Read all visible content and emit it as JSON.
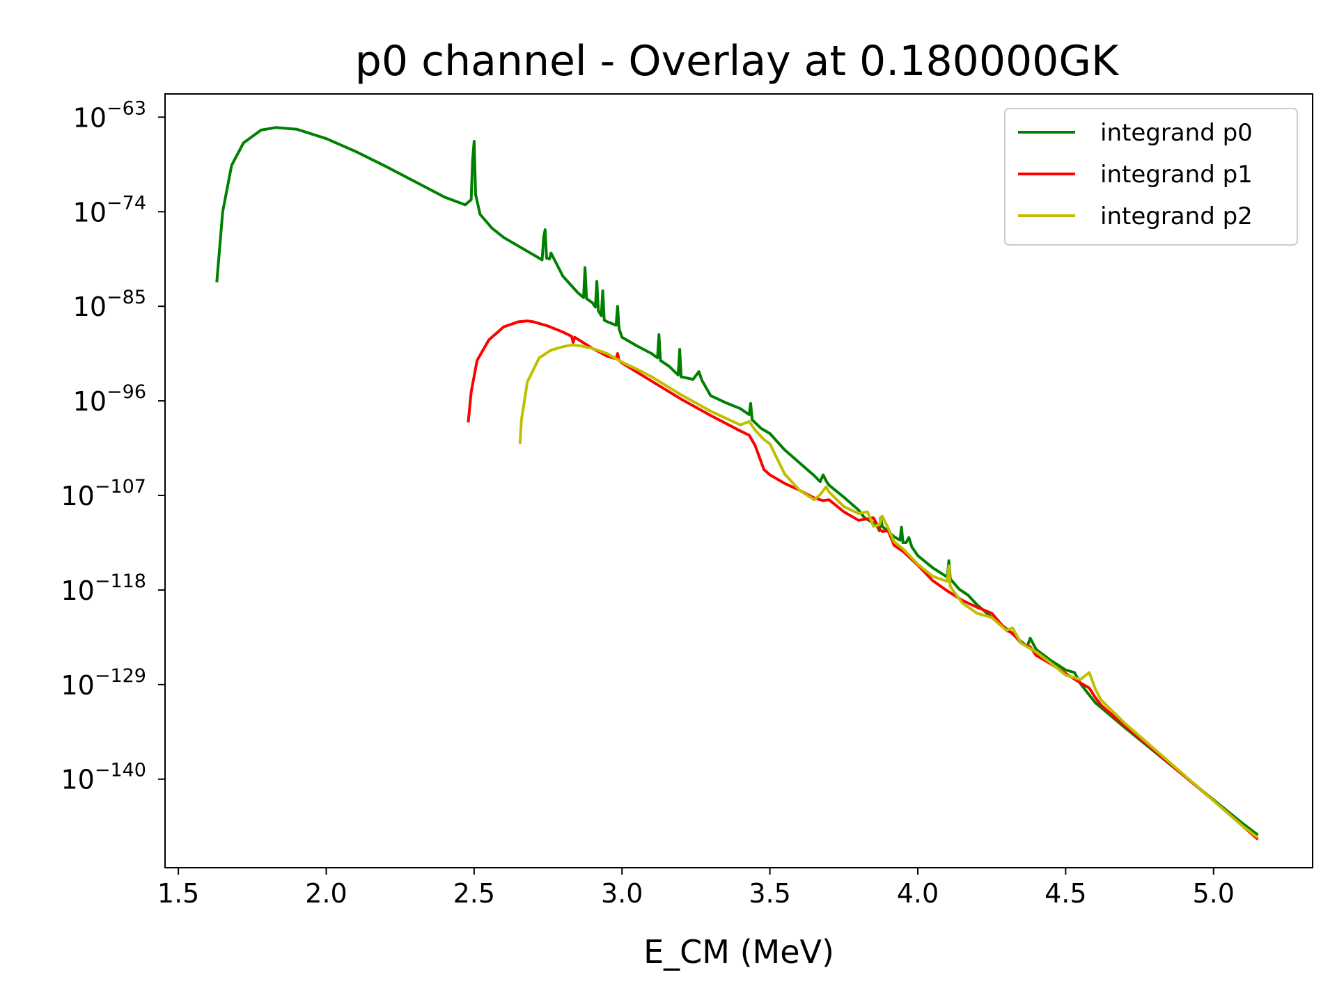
{
  "chart_data": {
    "type": "line",
    "title": "p0 channel - Overlay at 0.180000GK",
    "xlabel": "E_CM (MeV)",
    "ylabel": "",
    "yscale": "log",
    "xlim": [
      1.455,
      5.335
    ],
    "ylim_log10": [
      -150.3,
      -60.3
    ],
    "xticks": [
      1.5,
      2.0,
      2.5,
      3.0,
      3.5,
      4.0,
      4.5,
      5.0
    ],
    "xtick_labels": [
      "1.5",
      "2.0",
      "2.5",
      "3.0",
      "3.5",
      "4.0",
      "4.5",
      "5.0"
    ],
    "ytick_exponents": [
      -63,
      -74,
      -85,
      -96,
      -107,
      -118,
      -129,
      -140
    ],
    "ytick_base": "10",
    "ytick_labels": [
      "−63",
      "−74",
      "−85",
      "−96",
      "−107",
      "−118",
      "−129",
      "−140"
    ],
    "grid": false,
    "legend_position": "top-right",
    "series": [
      {
        "name": "integrand p0",
        "color": "#008000",
        "x": [
          1.63,
          1.65,
          1.68,
          1.72,
          1.78,
          1.83,
          1.9,
          2.0,
          2.1,
          2.2,
          2.3,
          2.4,
          2.47,
          2.49,
          2.495,
          2.5,
          2.505,
          2.52,
          2.56,
          2.6,
          2.65,
          2.7,
          2.73,
          2.735,
          2.74,
          2.745,
          2.755,
          2.76,
          2.8,
          2.85,
          2.87,
          2.875,
          2.88,
          2.9,
          2.91,
          2.915,
          2.92,
          2.93,
          2.935,
          2.94,
          2.95,
          2.98,
          2.985,
          2.99,
          3.0,
          3.05,
          3.1,
          3.12,
          3.125,
          3.13,
          3.16,
          3.19,
          3.195,
          3.2,
          3.24,
          3.26,
          3.27,
          3.3,
          3.35,
          3.4,
          3.43,
          3.435,
          3.44,
          3.47,
          3.5,
          3.55,
          3.6,
          3.65,
          3.67,
          3.68,
          3.69,
          3.7,
          3.75,
          3.8,
          3.82,
          3.84,
          3.86,
          3.87,
          3.875,
          3.88,
          3.9,
          3.92,
          3.94,
          3.945,
          3.95,
          3.96,
          3.97,
          3.98,
          4.0,
          4.05,
          4.1,
          4.105,
          4.11,
          4.14,
          4.17,
          4.2,
          4.25,
          4.3,
          4.35,
          4.37,
          4.38,
          4.4,
          4.45,
          4.5,
          4.53,
          4.55,
          4.6,
          4.7,
          4.8,
          4.9,
          5.0,
          5.1,
          5.15
        ],
        "log10y": [
          -82.2,
          -74.0,
          -68.6,
          -66.0,
          -64.5,
          -64.2,
          -64.4,
          -65.5,
          -67.0,
          -68.7,
          -70.5,
          -72.3,
          -73.2,
          -72.6,
          -68.0,
          -65.8,
          -72.0,
          -74.3,
          -75.9,
          -77.0,
          -78.0,
          -79.0,
          -79.6,
          -77.0,
          -76.1,
          -79.4,
          -79.5,
          -78.8,
          -81.5,
          -83.4,
          -84.0,
          -80.5,
          -84.1,
          -84.6,
          -85.1,
          -82.1,
          -85.5,
          -86.1,
          -83.2,
          -86.6,
          -86.8,
          -87.2,
          -85.0,
          -87.6,
          -88.6,
          -89.6,
          -90.5,
          -91.0,
          -88.3,
          -91.3,
          -92.0,
          -93.0,
          -90.0,
          -93.2,
          -93.5,
          -92.6,
          -93.6,
          -95.4,
          -96.2,
          -96.9,
          -97.6,
          -96.3,
          -98.2,
          -99.2,
          -99.8,
          -101.7,
          -103.2,
          -104.7,
          -105.4,
          -104.6,
          -105.3,
          -105.8,
          -107.2,
          -108.7,
          -109.6,
          -110.0,
          -110.4,
          -111.1,
          -109.6,
          -110.6,
          -111.2,
          -111.8,
          -112.2,
          -110.7,
          -112.5,
          -112.5,
          -111.9,
          -113.0,
          -114.0,
          -115.4,
          -116.5,
          -114.6,
          -116.7,
          -117.9,
          -118.6,
          -119.7,
          -121.2,
          -122.5,
          -124.0,
          -124.6,
          -123.6,
          -124.9,
          -126.2,
          -127.3,
          -127.6,
          -128.9,
          -131.1,
          -134.0,
          -136.8,
          -139.6,
          -142.4,
          -145.2,
          -146.5
        ]
      },
      {
        "name": "integrand p1",
        "color": "#ff0000",
        "x": [
          2.48,
          2.49,
          2.51,
          2.55,
          2.6,
          2.65,
          2.68,
          2.7,
          2.75,
          2.8,
          2.83,
          2.835,
          2.84,
          2.9,
          2.95,
          2.98,
          2.985,
          2.99,
          3.0,
          3.1,
          3.2,
          3.3,
          3.4,
          3.43,
          3.45,
          3.48,
          3.5,
          3.55,
          3.6,
          3.65,
          3.68,
          3.7,
          3.75,
          3.8,
          3.85,
          3.87,
          3.88,
          3.9,
          3.92,
          3.95,
          4.0,
          4.05,
          4.1,
          4.15,
          4.2,
          4.25,
          4.3,
          4.32,
          4.35,
          4.38,
          4.4,
          4.45,
          4.5,
          4.55,
          4.58,
          4.6,
          4.62,
          4.7,
          4.8,
          4.9,
          5.0,
          5.1,
          5.15
        ],
        "log10y": [
          -98.5,
          -95.0,
          -91.3,
          -88.9,
          -87.4,
          -86.8,
          -86.7,
          -86.8,
          -87.3,
          -88.0,
          -88.5,
          -89.2,
          -88.6,
          -89.9,
          -90.8,
          -91.1,
          -90.5,
          -91.3,
          -91.6,
          -93.7,
          -95.8,
          -97.7,
          -99.5,
          -100.0,
          -101.2,
          -104.0,
          -104.6,
          -105.6,
          -106.4,
          -107.3,
          -107.6,
          -107.5,
          -108.9,
          -109.9,
          -109.6,
          -110.9,
          -111.2,
          -111.1,
          -112.8,
          -113.5,
          -115.1,
          -116.9,
          -118.1,
          -119.2,
          -120.0,
          -120.7,
          -122.7,
          -123.0,
          -124.2,
          -124.6,
          -125.6,
          -126.6,
          -127.7,
          -128.8,
          -129.4,
          -130.5,
          -131.4,
          -133.8,
          -136.7,
          -139.6,
          -142.5,
          -145.5,
          -147.0
        ]
      },
      {
        "name": "integrand p2",
        "color": "#bfbf00",
        "x": [
          2.655,
          2.66,
          2.68,
          2.72,
          2.76,
          2.8,
          2.83,
          2.86,
          2.9,
          2.95,
          3.0,
          3.05,
          3.1,
          3.2,
          3.3,
          3.4,
          3.43,
          3.45,
          3.48,
          3.5,
          3.55,
          3.6,
          3.65,
          3.67,
          3.69,
          3.7,
          3.75,
          3.8,
          3.83,
          3.85,
          3.87,
          3.88,
          3.9,
          3.92,
          3.95,
          4.0,
          4.05,
          4.1,
          4.105,
          4.11,
          4.15,
          4.2,
          4.25,
          4.28,
          4.3,
          4.32,
          4.35,
          4.4,
          4.45,
          4.5,
          4.55,
          4.58,
          4.6,
          4.62,
          4.7,
          4.8,
          4.9,
          5.0,
          5.1,
          5.15
        ],
        "log10y": [
          -101.0,
          -98.2,
          -93.8,
          -91.0,
          -90.1,
          -89.7,
          -89.5,
          -89.6,
          -89.9,
          -90.5,
          -91.5,
          -92.3,
          -93.2,
          -95.3,
          -97.2,
          -98.8,
          -98.4,
          -99.4,
          -100.5,
          -101.0,
          -104.5,
          -106.4,
          -107.5,
          -106.9,
          -106.0,
          -106.6,
          -108.3,
          -109.1,
          -108.9,
          -110.6,
          -110.4,
          -109.4,
          -110.8,
          -112.4,
          -113.2,
          -115.0,
          -116.4,
          -117.0,
          -115.2,
          -117.6,
          -119.5,
          -120.7,
          -121.2,
          -122.1,
          -122.7,
          -122.4,
          -124.2,
          -125.2,
          -126.5,
          -127.9,
          -128.4,
          -127.6,
          -129.5,
          -130.8,
          -133.5,
          -136.5,
          -139.5,
          -142.5,
          -145.5,
          -146.8
        ]
      }
    ]
  }
}
